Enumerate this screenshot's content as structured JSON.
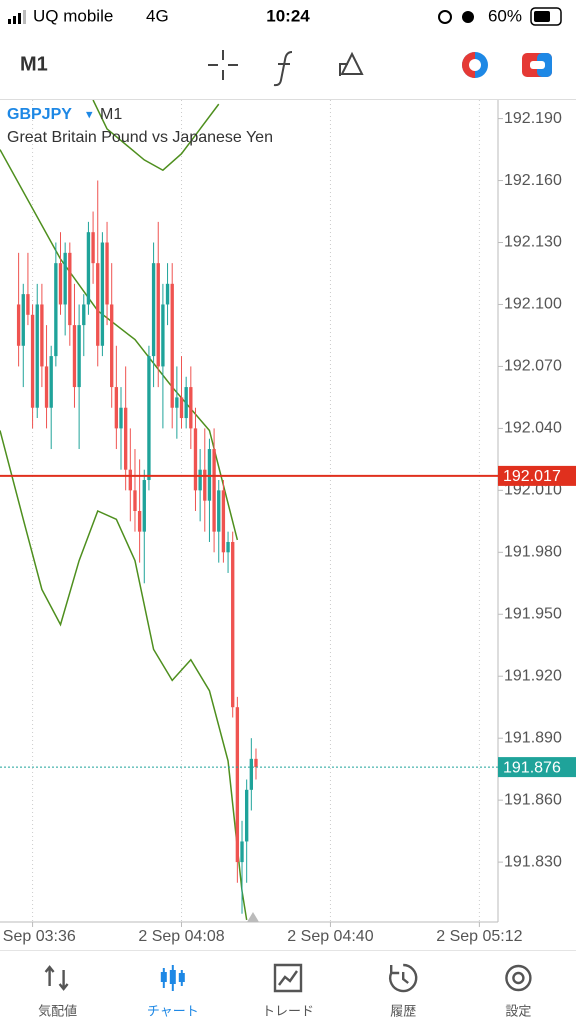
{
  "status_bar": {
    "carrier": "UQ mobile",
    "network": "4G",
    "time": "10:24",
    "battery": "60%"
  },
  "toolbar": {
    "timeframe": "M1"
  },
  "chart_data": {
    "type": "candlestick",
    "title": "GBPJPY",
    "timeframe": "M1",
    "subtitle": "Great Britain Pound vs Japanese Yen",
    "up_color": "#1fa39a",
    "down_color": "#ef5350",
    "xgrid": true,
    "xlim": [
      "2 Sep 03:29",
      "2 Sep 05:16"
    ],
    "xticks": [
      "2 Sep 03:36",
      "2 Sep 04:08",
      "2 Sep 04:40",
      "2 Sep 05:12"
    ],
    "ylim": [
      191.801,
      192.199
    ],
    "yticks": [
      {
        "value": 192.19,
        "label": "192.190"
      },
      {
        "value": 192.16,
        "label": "192.160"
      },
      {
        "value": 192.13,
        "label": "192.130"
      },
      {
        "value": 192.1,
        "label": "192.100"
      },
      {
        "value": 192.07,
        "label": "192.070"
      },
      {
        "value": 192.04,
        "label": "192.040"
      },
      {
        "value": 192.01,
        "label": "192.010"
      },
      {
        "value": 191.98,
        "label": "191.980"
      },
      {
        "value": 191.95,
        "label": "191.950"
      },
      {
        "value": 191.92,
        "label": "191.920"
      },
      {
        "value": 191.89,
        "label": "191.890"
      },
      {
        "value": 191.86,
        "label": "191.860"
      },
      {
        "value": 191.83,
        "label": "191.830"
      }
    ],
    "x": [
      "2 Sep 03:33",
      "2 Sep 03:34",
      "2 Sep 03:35",
      "2 Sep 03:36",
      "2 Sep 03:37",
      "2 Sep 03:38",
      "2 Sep 03:39",
      "2 Sep 03:40",
      "2 Sep 03:41",
      "2 Sep 03:42",
      "2 Sep 03:43",
      "2 Sep 03:44",
      "2 Sep 03:45",
      "2 Sep 03:46",
      "2 Sep 03:47",
      "2 Sep 03:48",
      "2 Sep 03:49",
      "2 Sep 03:50",
      "2 Sep 03:51",
      "2 Sep 03:52",
      "2 Sep 03:53",
      "2 Sep 03:54",
      "2 Sep 03:55",
      "2 Sep 03:56",
      "2 Sep 03:57",
      "2 Sep 03:58",
      "2 Sep 03:59",
      "2 Sep 04:00",
      "2 Sep 04:01",
      "2 Sep 04:02",
      "2 Sep 04:03",
      "2 Sep 04:04",
      "2 Sep 04:05",
      "2 Sep 04:06",
      "2 Sep 04:07",
      "2 Sep 04:08",
      "2 Sep 04:09",
      "2 Sep 04:10",
      "2 Sep 04:11",
      "2 Sep 04:12",
      "2 Sep 04:13",
      "2 Sep 04:14",
      "2 Sep 04:15",
      "2 Sep 04:16",
      "2 Sep 04:17",
      "2 Sep 04:18",
      "2 Sep 04:19",
      "2 Sep 04:20",
      "2 Sep 04:21",
      "2 Sep 04:22",
      "2 Sep 04:23",
      "2 Sep 04:24"
    ],
    "open": [
      192.1,
      192.08,
      192.105,
      192.095,
      192.05,
      192.1,
      192.07,
      192.05,
      192.075,
      192.12,
      192.1,
      192.125,
      192.09,
      192.06,
      192.09,
      192.1,
      192.135,
      192.12,
      192.08,
      192.13,
      192.1,
      192.06,
      192.04,
      192.05,
      192.02,
      192.01,
      192.0,
      191.99,
      192.015,
      192.075,
      192.12,
      192.07,
      192.1,
      192.11,
      192.05,
      192.055,
      192.045,
      192.06,
      192.04,
      192.01,
      192.02,
      192.005,
      192.03,
      191.99,
      192.01,
      191.98,
      191.985,
      191.905,
      191.83,
      191.84,
      191.865,
      191.88
    ],
    "high": [
      192.125,
      192.11,
      192.125,
      192.1,
      192.11,
      192.11,
      192.09,
      192.08,
      192.13,
      192.135,
      192.13,
      192.13,
      192.11,
      192.1,
      192.105,
      192.14,
      192.145,
      192.16,
      192.135,
      192.14,
      192.12,
      192.08,
      192.06,
      192.07,
      192.04,
      192.03,
      192.025,
      192.02,
      192.08,
      192.13,
      192.14,
      192.11,
      192.12,
      192.12,
      192.07,
      192.075,
      192.065,
      192.07,
      192.05,
      192.03,
      192.04,
      192.035,
      192.04,
      192.015,
      192.015,
      191.99,
      191.99,
      191.91,
      191.85,
      191.87,
      191.89,
      191.885
    ],
    "low": [
      192.07,
      192.06,
      192.09,
      192.04,
      192.045,
      192.06,
      192.04,
      192.03,
      192.07,
      192.095,
      192.085,
      192.08,
      192.05,
      192.03,
      192.075,
      192.095,
      192.11,
      192.07,
      192.075,
      192.09,
      192.05,
      192.03,
      192.02,
      192.01,
      191.995,
      191.99,
      191.975,
      191.965,
      192.01,
      192.06,
      192.06,
      192.04,
      192.09,
      192.04,
      192.035,
      192.04,
      192.04,
      192.03,
      192.0,
      191.995,
      191.99,
      191.985,
      191.98,
      191.975,
      191.975,
      191.97,
      191.9,
      191.82,
      191.805,
      191.82,
      191.855,
      191.87
    ],
    "close": [
      192.08,
      192.105,
      192.095,
      192.05,
      192.1,
      192.07,
      192.05,
      192.075,
      192.12,
      192.1,
      192.125,
      192.09,
      192.06,
      192.09,
      192.1,
      192.135,
      192.12,
      192.08,
      192.13,
      192.1,
      192.06,
      192.04,
      192.05,
      192.02,
      192.01,
      192.0,
      191.99,
      192.015,
      192.075,
      192.12,
      192.07,
      192.1,
      192.11,
      192.05,
      192.055,
      192.045,
      192.06,
      192.04,
      192.01,
      192.02,
      192.005,
      192.03,
      191.99,
      192.01,
      191.98,
      191.985,
      191.905,
      191.83,
      191.84,
      191.865,
      191.88,
      191.876
    ],
    "indicators": [
      {
        "color": "#4e8f1e",
        "x": [
          "2 Sep 03:49",
          "2 Sep 03:52",
          "2 Sep 04:00",
          "2 Sep 04:04",
          "2 Sep 04:08",
          "2 Sep 04:12",
          "2 Sep 04:16"
        ],
        "values": [
          192.199,
          192.185,
          192.17,
          192.165,
          192.173,
          192.185,
          192.197
        ]
      },
      {
        "color": "#4e8f1e",
        "x": [
          "2 Sep 03:29",
          "2 Sep 03:42",
          "2 Sep 03:50",
          "2 Sep 03:58",
          "2 Sep 04:06",
          "2 Sep 04:14",
          "2 Sep 04:20"
        ],
        "values": [
          192.175,
          192.122,
          192.097,
          192.083,
          192.06,
          192.039,
          191.986
        ]
      },
      {
        "color": "#4e8f1e",
        "x": [
          "2 Sep 03:29",
          "2 Sep 03:34",
          "2 Sep 03:38",
          "2 Sep 03:42",
          "2 Sep 03:46",
          "2 Sep 03:50",
          "2 Sep 03:54",
          "2 Sep 03:58",
          "2 Sep 04:02",
          "2 Sep 04:06",
          "2 Sep 04:10",
          "2 Sep 04:14",
          "2 Sep 04:18",
          "2 Sep 04:21",
          "2 Sep 04:22"
        ],
        "values": [
          192.039,
          191.996,
          191.962,
          191.945,
          191.976,
          192.0,
          191.996,
          191.976,
          191.933,
          191.918,
          191.928,
          191.913,
          191.879,
          191.816,
          191.802
        ]
      }
    ],
    "price_lines": [
      {
        "value": 192.017,
        "label": "192.017",
        "color": "#e0301e",
        "style": "solid"
      },
      {
        "value": 191.876,
        "label": "191.876",
        "color": "#1fa39a",
        "style": "dashed"
      }
    ]
  },
  "tab_bar": {
    "tabs": [
      "気配値",
      "チャート",
      "トレード",
      "履歴",
      "設定"
    ],
    "active": 1
  }
}
